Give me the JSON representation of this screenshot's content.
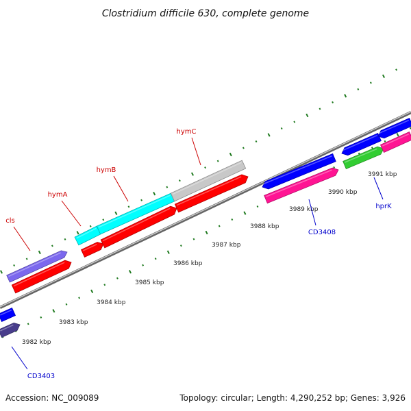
{
  "title": "Clostridium difficile 630, complete genome",
  "footer": {
    "accession": "Accession: NC_009089",
    "stats": "Topology: circular; Length: 4,290,252 bp; Genes: 3,926"
  },
  "colors": {
    "backbone": "#8c8c8c",
    "tick": "#1f7a1f",
    "label_red": "#cc0000",
    "label_blue": "#0000cc",
    "red_cds": "#ff0000",
    "blue_cds": "#0000ff",
    "cyan_cds": "#00ffff",
    "gray_cds": "#c8c8c8",
    "purple_cds": "#7b68ee",
    "navy_cds": "#483d8b",
    "pink_cds": "#ff1493",
    "green_cds": "#32cd32"
  },
  "scale_labels": [
    "3982 kbp",
    "3983 kbp",
    "3984 kbp",
    "3985 kbp",
    "3986 kbp",
    "3987 kbp",
    "3988 kbp",
    "3989 kbp",
    "3990 kbp",
    "3991 kbp"
  ],
  "gene_labels": [
    {
      "name": "cls",
      "color": "red"
    },
    {
      "name": "hymA",
      "color": "red"
    },
    {
      "name": "hymB",
      "color": "red"
    },
    {
      "name": "hymC",
      "color": "red"
    },
    {
      "name": "CD3408",
      "color": "blue"
    },
    {
      "name": "hprK",
      "color": "blue"
    },
    {
      "name": "CD3403",
      "color": "blue"
    }
  ]
}
